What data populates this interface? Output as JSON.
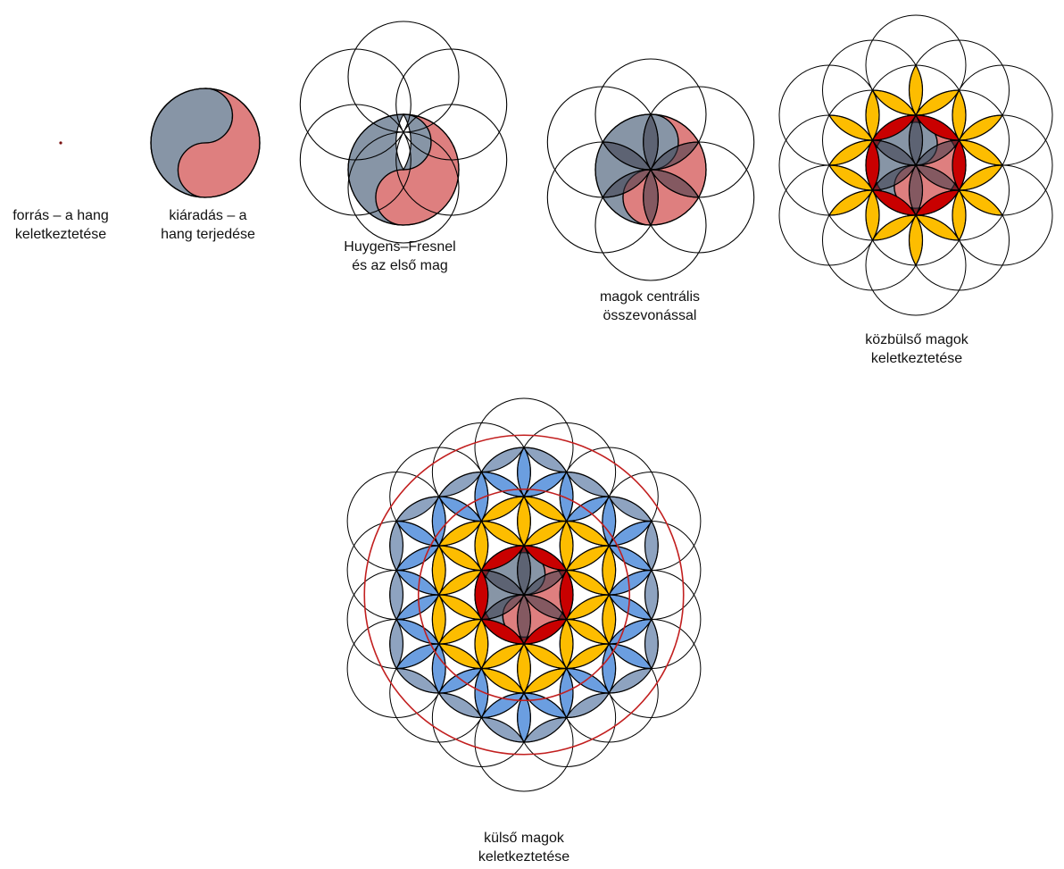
{
  "colors": {
    "stroke": "#000000",
    "grey": "#8795a6",
    "pink": "#de7f7f",
    "dark_red": "#c90000",
    "gold": "#fdbd00",
    "blue": "#6b9ee0",
    "blue_grey": "#8ea3c0",
    "red_ring": "#c21f1f"
  },
  "stages": [
    {
      "id": "source",
      "caption": [
        "forrás – a hang",
        "keletkeztetése"
      ]
    },
    {
      "id": "emission",
      "caption": [
        "kiáradás – a",
        "hang terjedése"
      ]
    },
    {
      "id": "huygens",
      "caption": [
        "Huygens–Fresnel",
        "és az első mag"
      ]
    },
    {
      "id": "central",
      "caption": [
        "magok centrális",
        "összevonással"
      ]
    },
    {
      "id": "intermediate",
      "caption": [
        "közbülső magok",
        "keletkeztetése"
      ]
    },
    {
      "id": "outer",
      "caption": [
        "külső magok",
        "keletkeztetése"
      ]
    }
  ]
}
